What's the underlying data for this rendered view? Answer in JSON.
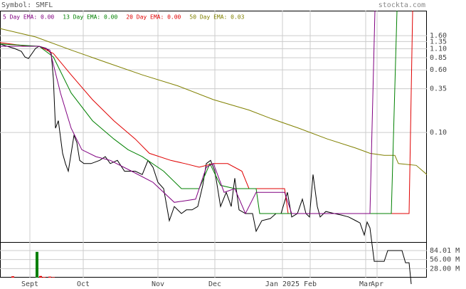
{
  "chart_data": {
    "type": "line",
    "title": "Symbol: SMFL",
    "source": "stockta.com",
    "log_scale": true,
    "grid": true,
    "xlim": [
      0,
      150
    ],
    "xticks": [
      {
        "value": 10.5,
        "label": "Sept"
      },
      {
        "value": 29.25,
        "label": "Oct"
      },
      {
        "value": 55.5,
        "label": "Nov"
      },
      {
        "value": 75.5,
        "label": "Dec"
      },
      {
        "value": 99.25,
        "label": "Jan 2025"
      },
      {
        "value": 109,
        "label": "Feb"
      },
      {
        "value": 128.5,
        "label": "Mar"
      },
      {
        "value": 132.5,
        "label": "Apr"
      }
    ],
    "ylim": [
      0.00434,
      3.27
    ],
    "yticks": [
      {
        "value": 1.6,
        "label": "1.60"
      },
      1.35,
      {
        "value": 1.1,
        "label": "1.10"
      },
      0.85,
      {
        "value": 0.6,
        "label": "0.60"
      },
      0.35,
      {
        "value": 0.1,
        "label": "0.10"
      }
    ],
    "series": [
      {
        "color": "#000000",
        "x": [
          0,
          2.5,
          5,
          7.5,
          8.75,
          10,
          12.5,
          13.75,
          16.25,
          18,
          18.75,
          19.5,
          20.5,
          22,
          23,
          24,
          25,
          26,
          27,
          28,
          29.5,
          32,
          35,
          37,
          38.75,
          41.25,
          43.75,
          47.5,
          50,
          52,
          53.75,
          55.5,
          57.5,
          59.5,
          61.25,
          63.75,
          65.5,
          67.5,
          69.5,
          71.25,
          72.5,
          74,
          75.5,
          77.5,
          79.5,
          81.25,
          82.5,
          84,
          86.25,
          88.75,
          90,
          92,
          95,
          97,
          98.75,
          101,
          102.5,
          104.5,
          106.25,
          107.5,
          108.75,
          110,
          111.5,
          112.5,
          114.5,
          117.5,
          120,
          122.5,
          125,
          126.5,
          128,
          129,
          130,
          131.5,
          135,
          136.25,
          141.25,
          142.5,
          143.75,
          144.5
        ],
        "values": [
          1.26,
          1.18,
          1.11,
          1.02,
          0.87,
          0.83,
          1.11,
          1.18,
          1.11,
          0.96,
          0.47,
          0.113,
          0.14,
          0.055,
          0.041,
          0.033,
          0.055,
          0.092,
          0.075,
          0.045,
          0.041,
          0.041,
          0.045,
          0.05,
          0.041,
          0.045,
          0.033,
          0.033,
          0.03,
          0.045,
          0.037,
          0.024,
          0.02,
          0.008,
          0.012,
          0.0098,
          0.0109,
          0.0109,
          0.012,
          0.022,
          0.041,
          0.045,
          0.033,
          0.012,
          0.018,
          0.012,
          0.027,
          0.0109,
          0.0098,
          0.0098,
          0.0059,
          0.008,
          0.0085,
          0.0098,
          0.0098,
          0.018,
          0.0089,
          0.0098,
          0.0148,
          0.0098,
          0.0089,
          0.03,
          0.012,
          0.0089,
          0.0104,
          0.0098,
          0.0094,
          0.0089,
          0.008,
          0.0075,
          0.0053,
          0.0077,
          0.0065,
          0.0025,
          0.0025,
          0.0034,
          0.0034,
          0.0024,
          0.0024,
          0.0013
        ]
      },
      {
        "name": "5 Day EMA: 0.00",
        "color": "#800080",
        "x": [
          0,
          13.75,
          17.5,
          21.25,
          25,
          28.75,
          33.75,
          38.75,
          46.25,
          53.75,
          61.25,
          68.75,
          72.5,
          75,
          78.75,
          82.5,
          86.25,
          90,
          100,
          102.5,
          130,
          131.75
        ],
        "values": [
          1.18,
          1.18,
          1.06,
          0.31,
          0.113,
          0.061,
          0.05,
          0.045,
          0.033,
          0.024,
          0.0135,
          0.0148,
          0.037,
          0.041,
          0.018,
          0.02,
          0.0098,
          0.018,
          0.018,
          0.0098,
          0.0098,
          3.27
        ]
      },
      {
        "name": "13 Day EMA: 0.00",
        "color": "#008000",
        "x": [
          0,
          13.75,
          18.75,
          25,
          32.5,
          40,
          45,
          50,
          57.5,
          63.75,
          70,
          73.75,
          77.5,
          82.5,
          90,
          91.25,
          137.5,
          139.5
        ],
        "values": [
          1.26,
          1.18,
          0.87,
          0.31,
          0.14,
          0.083,
          0.061,
          0.05,
          0.033,
          0.02,
          0.02,
          0.041,
          0.022,
          0.02,
          0.02,
          0.0098,
          0.0098,
          3.27
        ]
      },
      {
        "name": "20 Day EMA: 0.00",
        "color": "#e00000",
        "x": [
          0,
          10,
          13.75,
          18.75,
          25,
          32.5,
          40,
          47.5,
          52.5,
          60,
          65,
          70,
          75,
          80,
          85,
          87.5,
          100,
          101.25,
          143.75,
          145
        ],
        "values": [
          1.31,
          1.18,
          1.18,
          0.96,
          0.52,
          0.256,
          0.14,
          0.083,
          0.055,
          0.045,
          0.041,
          0.037,
          0.041,
          0.041,
          0.033,
          0.02,
          0.02,
          0.0098,
          0.0098,
          3.27
        ]
      },
      {
        "name": "50 Day EMA: 0.03",
        "color": "#808000",
        "x": [
          0,
          12.5,
          25,
          37.5,
          50,
          62.5,
          75,
          87.5,
          95,
          105,
          115,
          125,
          130,
          135,
          138.75,
          140,
          146.25,
          150
        ],
        "values": [
          1.96,
          1.54,
          1.06,
          0.74,
          0.52,
          0.38,
          0.256,
          0.19,
          0.15,
          0.113,
          0.083,
          0.064,
          0.055,
          0.052,
          0.052,
          0.041,
          0.039,
          0.03
        ]
      }
    ],
    "volume": {
      "type": "bar",
      "ylim": [
        0,
        110600000
      ],
      "yticks": [
        {
          "value": 84010000,
          "label": "84.01 M"
        },
        {
          "value": 56000000,
          "label": "56.00 M"
        },
        {
          "value": 28000000,
          "label": "28.00 M"
        }
      ],
      "x": [
        4.5,
        13,
        14.25,
        15.5,
        17.5,
        18.75
      ],
      "values": [
        4000000,
        80000000,
        5000000,
        2000000,
        3000000,
        1500000
      ],
      "colors": [
        "#e00000",
        "#008000",
        "#e00000",
        "#e00000",
        "#e00000",
        "#e00000"
      ]
    }
  }
}
